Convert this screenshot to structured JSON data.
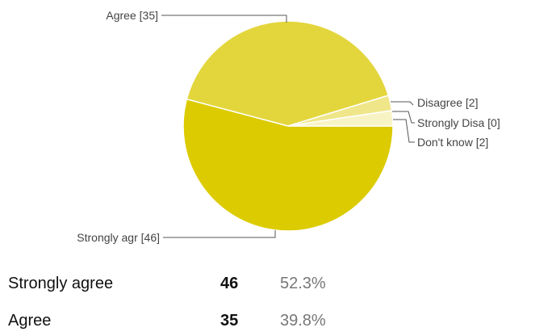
{
  "chart_data": {
    "type": "pie",
    "slices": [
      {
        "label": "Strongly agr [46]",
        "name": "Strongly agree",
        "value": 46,
        "color": "#dccb00"
      },
      {
        "label": "Agree [35]",
        "name": "Agree",
        "value": 35,
        "color": "#e3d63c"
      },
      {
        "label": "Disagree [2]",
        "name": "Disagree",
        "value": 2,
        "color": "#efe68a"
      },
      {
        "label": "Strongly Disa [0]",
        "name": "Strongly disagree",
        "value": 0,
        "color": "#f5efb0"
      },
      {
        "label": "Don't know [2]",
        "name": "Don't know",
        "value": 2,
        "color": "#f8f3c4"
      }
    ]
  },
  "summary": [
    {
      "label": "Strongly agree",
      "count": "46",
      "percent": "52.3%"
    },
    {
      "label": "Agree",
      "count": "35",
      "percent": "39.8%"
    }
  ]
}
